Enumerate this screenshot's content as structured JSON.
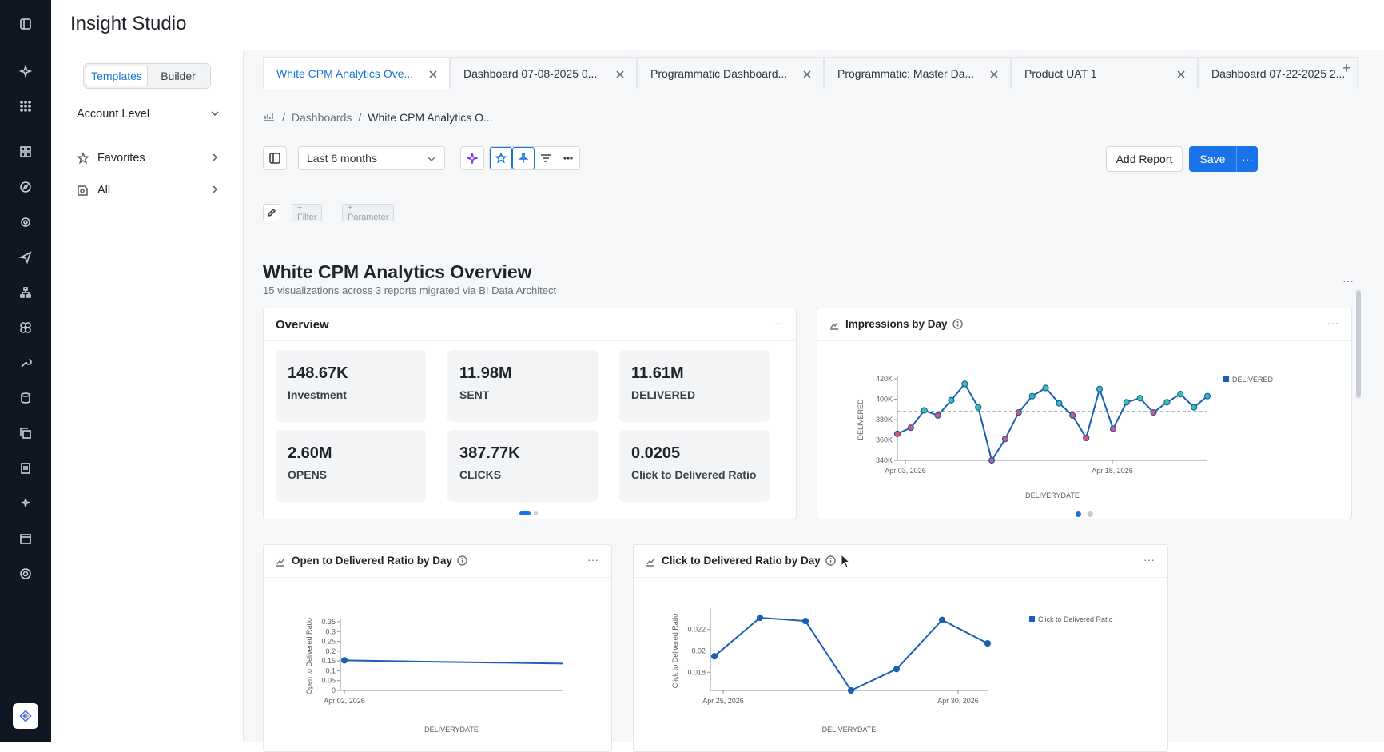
{
  "app": {
    "title": "Insight Studio"
  },
  "rail": {
    "icons": [
      "sidebar-toggle-icon",
      "sparkle-icon",
      "apps-grid-icon",
      "dashboard-icon",
      "compass-icon",
      "target-icon",
      "send-icon",
      "hierarchy-icon",
      "palette-icon",
      "wrench-icon",
      "database-icon",
      "copy-icon",
      "report-icon",
      "magic-icon",
      "calendar-icon",
      "settings-icon"
    ]
  },
  "sidebar": {
    "toggle": {
      "templates": "Templates",
      "builder": "Builder"
    },
    "account_level": "Account Level",
    "favorites": "Favorites",
    "all": "All"
  },
  "tabs": [
    {
      "label": "White CPM Analytics Ove..."
    },
    {
      "label": "Dashboard 07-08-2025 0..."
    },
    {
      "label": "Programmatic Dashboard..."
    },
    {
      "label": "Programmatic: Master Da..."
    },
    {
      "label": "Product UAT 1"
    },
    {
      "label": "Dashboard 07-22-2025 2..."
    }
  ],
  "tabs_more": "···",
  "tabs_add": "+",
  "breadcrumb": {
    "dashboards": "Dashboards",
    "current": "White CPM Analytics O..."
  },
  "toolbar": {
    "date_range": "Last 6 months",
    "add_report": "Add Report",
    "save": "Save",
    "more": "···"
  },
  "filters": {
    "filter": "+ Filter",
    "parameter": "+ Parameter"
  },
  "dashboard": {
    "title": "White CPM Analytics Overview",
    "subtitle": "15 visualizations across 3 reports migrated via BI Data Architect",
    "more": "···"
  },
  "overview": {
    "title": "Overview",
    "kpis": [
      {
        "value": "148.67K",
        "label": "Investment"
      },
      {
        "value": "11.98M",
        "label": "SENT"
      },
      {
        "value": "11.61M",
        "label": "DELIVERED"
      },
      {
        "value": "2.60M",
        "label": "OPENS"
      },
      {
        "value": "387.77K",
        "label": "CLICKS"
      },
      {
        "value": "0.0205",
        "label": "Click to Delivered Ratio"
      }
    ]
  },
  "impressions": {
    "title": "Impressions by Day",
    "chart_data": {
      "type": "line",
      "xlabel": "DELIVERYDATE",
      "ylabel": "DELIVERED",
      "yticks": [
        "340K",
        "360K",
        "380K",
        "400K",
        "420K"
      ],
      "ylim": [
        340000,
        420000
      ],
      "xticks": [
        "Apr 03, 2026",
        "Apr 18, 2026"
      ],
      "legend": "DELIVERED",
      "average": 388000,
      "series": [
        {
          "name": "DELIVERED",
          "values": [
            366000,
            372000,
            389000,
            384000,
            399000,
            415000,
            392000,
            340000,
            361000,
            387000,
            403000,
            411000,
            396000,
            384000,
            362000,
            410000,
            371000,
            397000,
            401000,
            387000,
            397000,
            405000,
            392000,
            403000
          ]
        }
      ],
      "colors": {
        "line": "#1a5fb4",
        "above": "#3fc1a0",
        "below": "#e0566b",
        "avg": "#9aa1aa"
      }
    }
  },
  "open_ratio": {
    "title": "Open to Delivered Ratio by Day",
    "chart_data": {
      "type": "line",
      "xlabel": "DELIVERYDATE",
      "ylabel": "Open to Delivered Ratio",
      "yticks": [
        "0",
        "0.05",
        "0.1",
        "0.15",
        "0.2",
        "0.25",
        "0.3",
        "0.35"
      ],
      "ylim": [
        0,
        0.35
      ],
      "xticks": [
        "Apr 02, 2026"
      ],
      "series": [
        {
          "name": "Open to Delivered Ratio",
          "values": [
            0.153,
            0.147,
            0.142,
            0.137
          ]
        }
      ],
      "colors": {
        "line": "#1a5fb4"
      }
    }
  },
  "click_ratio": {
    "title": "Click to Delivered Ratio by Day",
    "chart_data": {
      "type": "line",
      "xlabel": "DELIVERYDATE",
      "ylabel": "Click to Delivered Ratio",
      "yticks": [
        "0.018",
        "0.02",
        "0.022"
      ],
      "ylim": [
        0.0163,
        0.0237
      ],
      "xticks": [
        "Apr 25, 2026",
        "Apr 30, 2026"
      ],
      "legend": "Click to Delivered Ratio",
      "series": [
        {
          "name": "Click to Delivered Ratio",
          "values": [
            0.0195,
            0.0231,
            0.0228,
            0.0163,
            0.0183,
            0.0229,
            0.0207
          ]
        }
      ],
      "colors": {
        "line": "#1a5fb4"
      }
    }
  }
}
